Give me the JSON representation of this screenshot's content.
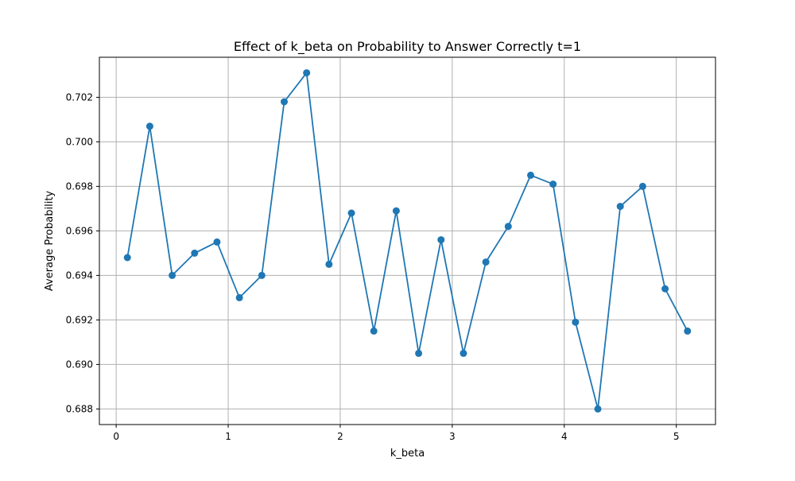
{
  "chart_data": {
    "type": "line",
    "title": "Effect of k_beta on Probability to Answer Correctly t=1",
    "xlabel": "k_beta",
    "ylabel": "Average Probability",
    "xlim": [
      -0.15,
      5.35
    ],
    "ylim": [
      0.6873,
      0.7038
    ],
    "xticks": [
      0,
      1,
      2,
      3,
      4,
      5
    ],
    "xtick_labels": [
      "0",
      "1",
      "2",
      "3",
      "4",
      "5"
    ],
    "yticks": [
      0.688,
      0.69,
      0.692,
      0.694,
      0.696,
      0.698,
      0.7,
      0.702
    ],
    "ytick_labels": [
      "0.688",
      "0.690",
      "0.692",
      "0.694",
      "0.696",
      "0.698",
      "0.700",
      "0.702"
    ],
    "grid": true,
    "marker": "circle",
    "series": [
      {
        "color": "#1f77b4",
        "x": [
          0.1,
          0.3,
          0.5,
          0.7,
          0.9,
          1.1,
          1.3,
          1.5,
          1.7,
          1.9,
          2.1,
          2.3,
          2.5,
          2.7,
          2.9,
          3.1,
          3.3,
          3.5,
          3.7,
          3.9,
          4.1,
          4.3,
          4.5,
          4.7,
          4.9,
          5.1
        ],
        "y": [
          0.6948,
          0.7007,
          0.694,
          0.695,
          0.6955,
          0.693,
          0.694,
          0.7018,
          0.7031,
          0.6945,
          0.6968,
          0.6915,
          0.6969,
          0.6905,
          0.6956,
          0.6905,
          0.6946,
          0.6962,
          0.6985,
          0.6981,
          0.6919,
          0.688,
          0.6971,
          0.698,
          0.6934,
          0.6915
        ]
      }
    ]
  }
}
